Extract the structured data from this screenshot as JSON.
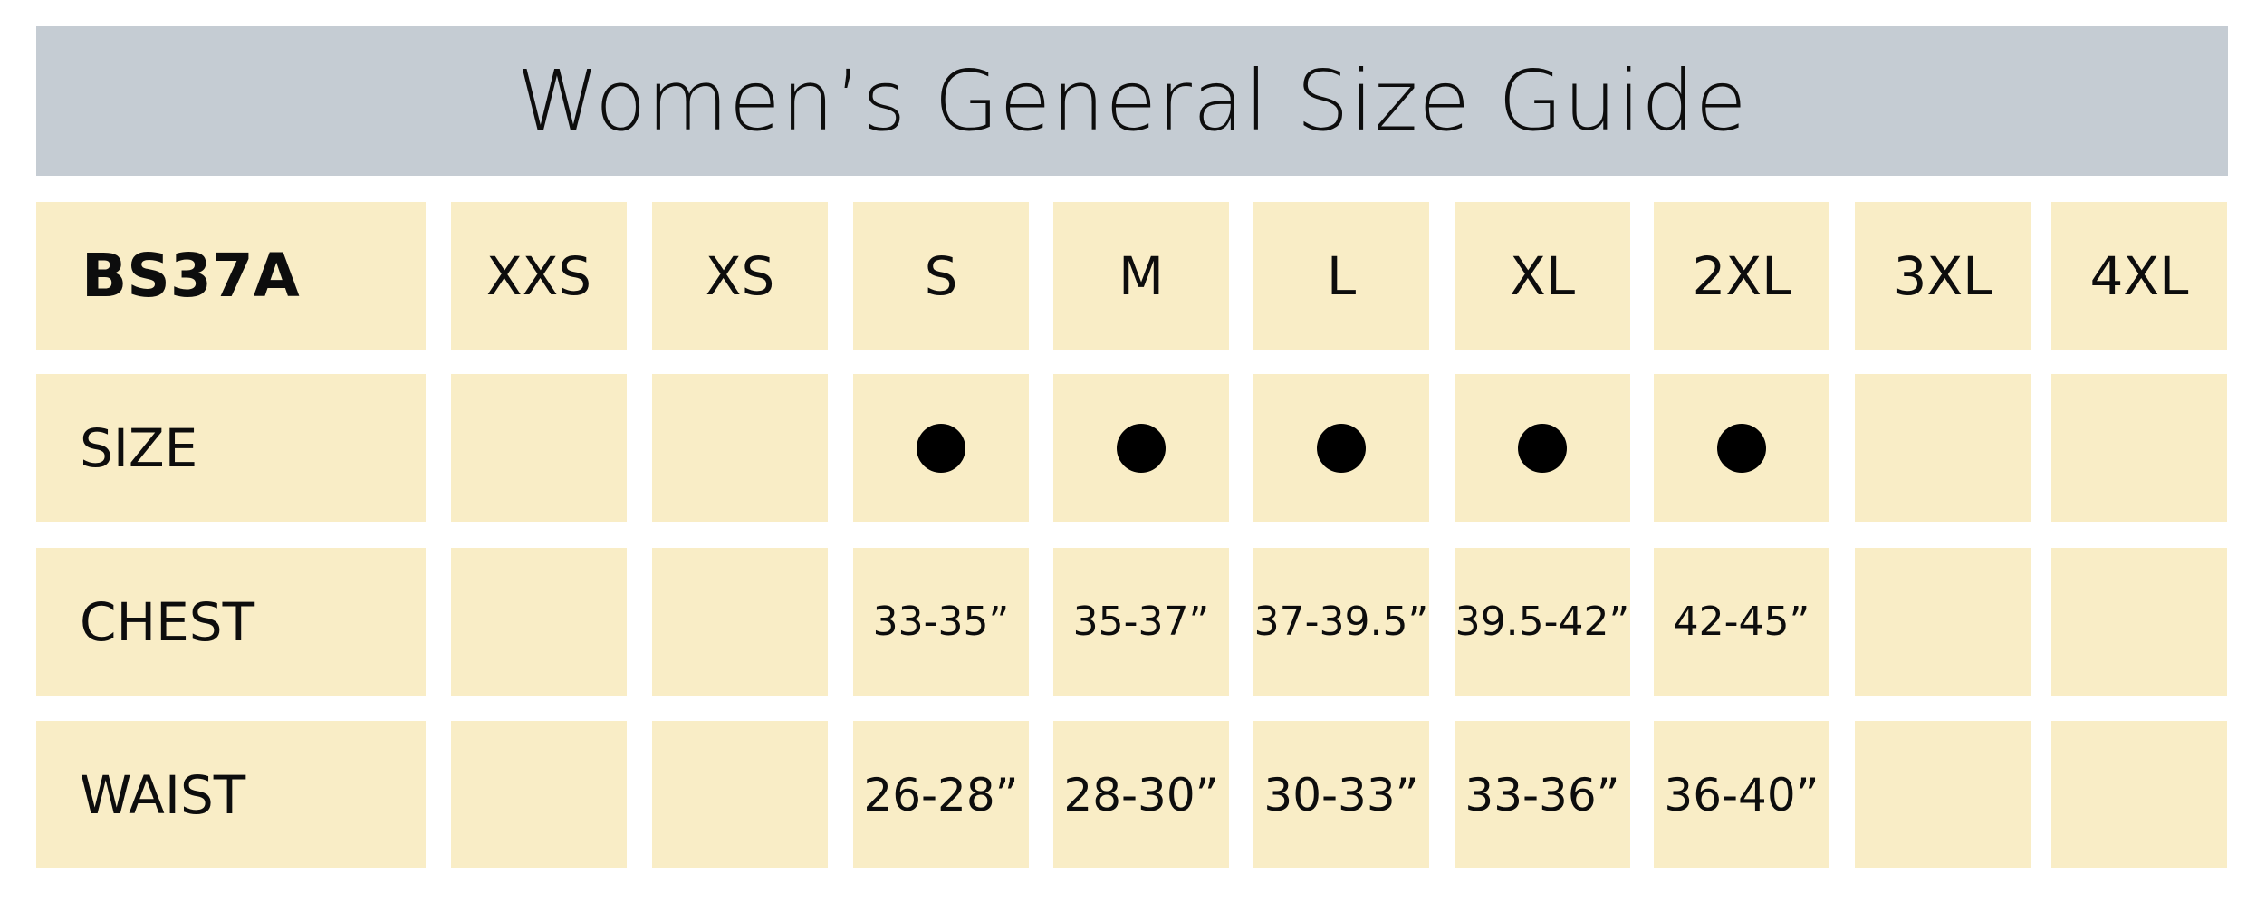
{
  "title": "Women’s General Size Guide",
  "colors": {
    "header_bg": "#c5ccd3",
    "cell_bg": "#f9edc6",
    "text": "#0d0d0d",
    "dot": "#000000"
  },
  "code": "BS37A",
  "sizes": [
    "XXS",
    "XS",
    "S",
    "M",
    "L",
    "XL",
    "2XL",
    "3XL",
    "4XL"
  ],
  "rows": [
    {
      "label": "SIZE",
      "available": [
        false,
        false,
        true,
        true,
        true,
        true,
        true,
        false,
        false
      ],
      "icon": "filled-circle-icon"
    },
    {
      "label": "CHEST",
      "values": [
        "",
        "",
        "33-35”",
        "35-37”",
        "37-39.5”",
        "39.5-42”",
        "42-45”",
        "",
        ""
      ]
    },
    {
      "label": "WAIST",
      "values": [
        "",
        "",
        "26-28”",
        "28-30”",
        "30-33”",
        "33-36”",
        "36-40”",
        "",
        ""
      ]
    }
  ]
}
